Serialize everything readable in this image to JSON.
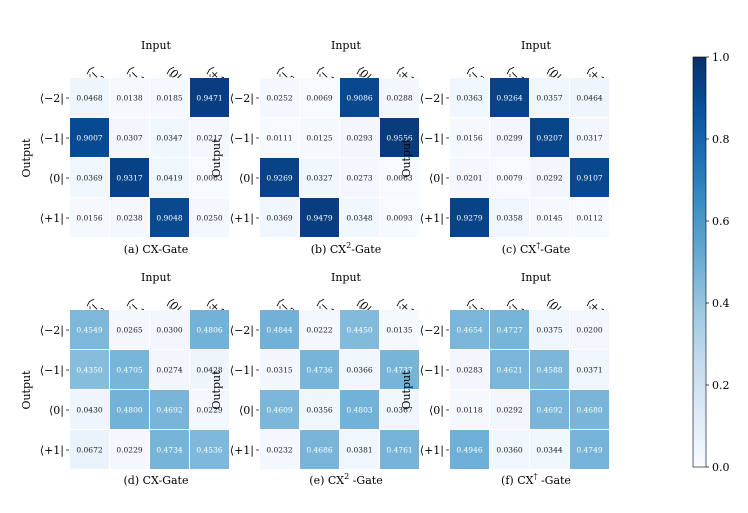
{
  "colorbar": {
    "min": 0.0,
    "max": 1.0,
    "ticks": [
      "0.0",
      "0.2",
      "0.4",
      "0.6",
      "0.8",
      "1.0"
    ]
  },
  "colormap": {
    "low": "#f7fbff",
    "high": "#08306b"
  },
  "chart_data": [
    {
      "type": "heatmap",
      "title": "Input",
      "caption_prefix": "(a) CX",
      "caption_sup": "",
      "caption_suffix": "-Gate",
      "xlabel": "Input",
      "ylabel": "Output",
      "x_categories": [
        "⟨−2|",
        "⟨−1|",
        "⟨0|",
        "⟨+1|"
      ],
      "y_categories": [
        "⟨−2|",
        "⟨−1|",
        "⟨0|",
        "⟨+1|"
      ],
      "values": [
        [
          0.0468,
          0.0138,
          0.0185,
          0.9471
        ],
        [
          0.9007,
          0.0307,
          0.0347,
          0.0217
        ],
        [
          0.0369,
          0.9317,
          0.0419,
          0.0063
        ],
        [
          0.0156,
          0.0238,
          0.9048,
          0.025
        ]
      ]
    },
    {
      "type": "heatmap",
      "title": "Input",
      "caption_prefix": "(b) CX",
      "caption_sup": "2",
      "caption_suffix": "-Gate",
      "xlabel": "Input",
      "ylabel": "Output",
      "x_categories": [
        "⟨−2|",
        "⟨−1|",
        "⟨0|",
        "⟨+1|"
      ],
      "y_categories": [
        "⟨−2|",
        "⟨−1|",
        "⟨0|",
        "⟨+1|"
      ],
      "values": [
        [
          0.0252,
          0.0069,
          0.9086,
          0.0288
        ],
        [
          0.0111,
          0.0125,
          0.0293,
          0.9556
        ],
        [
          0.9269,
          0.0327,
          0.0273,
          0.0063
        ],
        [
          0.0369,
          0.9479,
          0.0348,
          0.0093
        ]
      ]
    },
    {
      "type": "heatmap",
      "title": "Input",
      "caption_prefix": "(c) CX",
      "caption_sup": "†",
      "caption_suffix": "-Gate",
      "xlabel": "Input",
      "ylabel": "Output",
      "x_categories": [
        "⟨−2|",
        "⟨−1|",
        "⟨0|",
        "⟨+1|"
      ],
      "y_categories": [
        "⟨−2|",
        "⟨−1|",
        "⟨0|",
        "⟨+1|"
      ],
      "values": [
        [
          0.0363,
          0.9264,
          0.0357,
          0.0464
        ],
        [
          0.0156,
          0.0299,
          0.9207,
          0.0317
        ],
        [
          0.0201,
          0.0079,
          0.0292,
          0.9107
        ],
        [
          0.9279,
          0.0358,
          0.0145,
          0.0112
        ]
      ]
    },
    {
      "type": "heatmap",
      "title": "Input",
      "caption_prefix": "(d) CX",
      "caption_sup": "",
      "caption_suffix": "-Gate",
      "xlabel": "Input",
      "ylabel": "Output",
      "x_categories": [
        "⟨−2|",
        "⟨−1|",
        "⟨0|",
        "⟨+1|"
      ],
      "y_categories": [
        "⟨−2|",
        "⟨−1|",
        "⟨0|",
        "⟨+1|"
      ],
      "values": [
        [
          0.4549,
          0.0265,
          0.03,
          0.4806
        ],
        [
          0.435,
          0.4705,
          0.0274,
          0.0428
        ],
        [
          0.043,
          0.48,
          0.4692,
          0.0229
        ],
        [
          0.0672,
          0.0229,
          0.4734,
          0.4536
        ]
      ]
    },
    {
      "type": "heatmap",
      "title": "Input",
      "caption_prefix": "(e) CX",
      "caption_sup": "2",
      "caption_suffix": " -Gate",
      "xlabel": "Input",
      "ylabel": "Output",
      "x_categories": [
        "⟨−2|",
        "⟨−1|",
        "⟨0|",
        "⟨+1|"
      ],
      "y_categories": [
        "⟨−2|",
        "⟨−1|",
        "⟨0|",
        "⟨+1|"
      ],
      "values": [
        [
          0.4844,
          0.0222,
          0.445,
          0.0135
        ],
        [
          0.0315,
          0.4736,
          0.0366,
          0.4737
        ],
        [
          0.4609,
          0.0356,
          0.4803,
          0.0367
        ],
        [
          0.0232,
          0.4686,
          0.0381,
          0.4761
        ]
      ]
    },
    {
      "type": "heatmap",
      "title": "Input",
      "caption_prefix": "(f) CX",
      "caption_sup": "†",
      "caption_suffix": " -Gate",
      "xlabel": "Input",
      "ylabel": "Output",
      "x_categories": [
        "⟨−2|",
        "⟨−1|",
        "⟨0|",
        "⟨+1|"
      ],
      "y_categories": [
        "⟨−2|",
        "⟨−1|",
        "⟨0|",
        "⟨+1|"
      ],
      "values": [
        [
          0.4654,
          0.4727,
          0.0375,
          0.02
        ],
        [
          0.0283,
          0.4621,
          0.4588,
          0.0371
        ],
        [
          0.0118,
          0.0292,
          0.4692,
          0.468
        ],
        [
          0.4946,
          0.036,
          0.0344,
          0.4749
        ]
      ]
    }
  ]
}
